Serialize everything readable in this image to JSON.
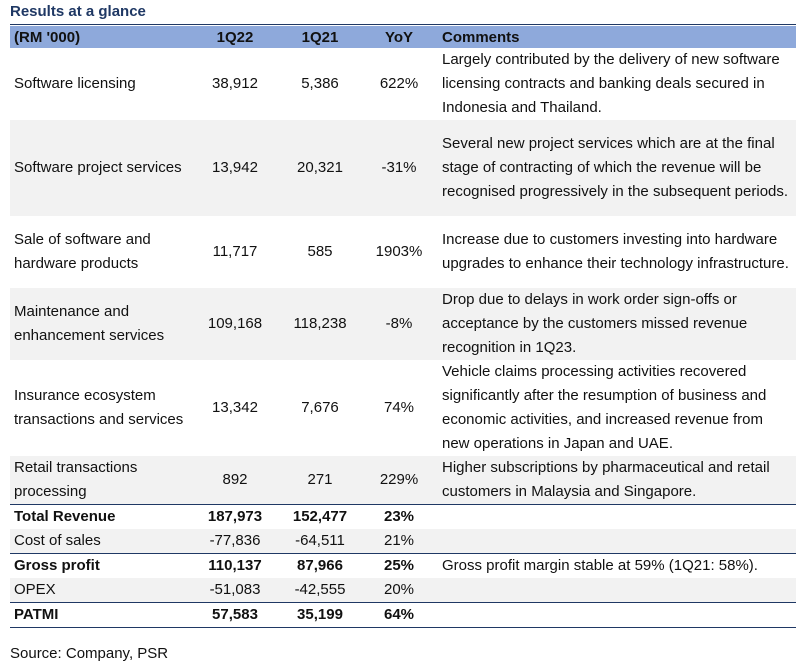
{
  "title": "Results at a glance",
  "headers": [
    "(RM '000)",
    "1Q22",
    "1Q21",
    "YoY",
    "Comments"
  ],
  "rows": [
    {
      "label": "Software licensing",
      "q22": "38,912",
      "q21": "5,386",
      "yoy": "622%",
      "comment": "Largely contributed by the delivery of new software licensing contracts and banking deals secured in Indonesia and Thailand."
    },
    {
      "label": "Software project services",
      "q22": "13,942",
      "q21": "20,321",
      "yoy": "-31%",
      "comment": "Several new project services which are at the final stage of contracting of which the revenue will be recognised progressively in the subsequent periods."
    },
    {
      "label": "Sale of software and hardware products",
      "q22": "11,717",
      "q21": "585",
      "yoy": "1903%",
      "comment": "Increase due to customers investing into hardware upgrades to enhance their technology infrastructure."
    },
    {
      "label": "Maintenance and enhancement services",
      "q22": "109,168",
      "q21": "118,238",
      "yoy": "-8%",
      "comment": "Drop due to delays in work order sign-offs or acceptance by the customers missed revenue recognition in 1Q23."
    },
    {
      "label": "Insurance ecosystem transactions and services",
      "q22": "13,342",
      "q21": "7,676",
      "yoy": "74%",
      "comment": "Vehicle claims processing activities recovered significantly after the resumption of business and economic activities, and increased revenue from new operations in Japan and UAE."
    },
    {
      "label": "Retail transactions processing",
      "q22": "892",
      "q21": "271",
      "yoy": "229%",
      "comment": "Higher subscriptions by pharmaceutical and retail customers in Malaysia and Singapore."
    },
    {
      "label": "Total Revenue",
      "q22": "187,973",
      "q21": "152,477",
      "yoy": "23%",
      "comment": ""
    },
    {
      "label": "Cost of sales",
      "q22": "-77,836",
      "q21": "-64,511",
      "yoy": "21%",
      "comment": ""
    },
    {
      "label": "Gross profit",
      "q22": "110,137",
      "q21": "87,966",
      "yoy": "25%",
      "comment": "Gross profit margin stable at 59% (1Q21: 58%)."
    },
    {
      "label": "OPEX",
      "q22": "-51,083",
      "q21": "-42,555",
      "yoy": "20%",
      "comment": ""
    },
    {
      "label": "PATMI",
      "q22": "57,583",
      "q21": "35,199",
      "yoy": "64%",
      "comment": ""
    }
  ],
  "source": "Source: Company, PSR",
  "colors": {
    "header_bg": "#8ea9db",
    "title": "#1f3864",
    "row_shade": "#f2f2f2",
    "rule": "#1f3864"
  }
}
